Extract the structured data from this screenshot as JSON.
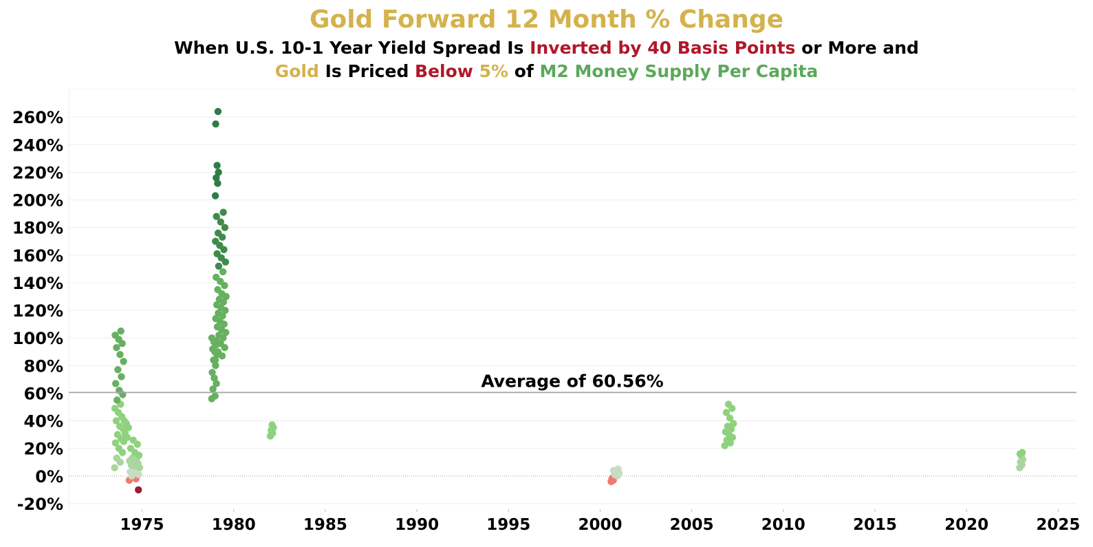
{
  "title": "Gold Forward 12 Month % Change",
  "subtitle_line1": [
    {
      "text": "When U.S. 10-1 Year Yield Spread Is ",
      "color": "black"
    },
    {
      "text": "Inverted by 40 Basis Points",
      "color": "red"
    },
    {
      "text": " or More and",
      "color": "black"
    }
  ],
  "subtitle_line2": [
    {
      "text": "Gold",
      "color": "gold"
    },
    {
      "text": " Is Priced ",
      "color": "black"
    },
    {
      "text": "Below",
      "color": "red"
    },
    {
      "text": " 5%",
      "color": "gold"
    },
    {
      "text": " of ",
      "color": "black"
    },
    {
      "text": "M2 Money Supply Per Capita",
      "color": "green"
    }
  ],
  "colors": {
    "title_gold": "#D4B24C",
    "red": "#B0172A",
    "green": "#5CA85A",
    "average_line": "#A6A6A6",
    "dark_green": "#2E7D46",
    "mid_green": "#66B060",
    "light_green": "#8ED27E",
    "pale": "#C9DCC2",
    "salmon": "#F07A6E",
    "dark_red": "#A31A35"
  },
  "chart_data": {
    "type": "scatter",
    "xlabel": "",
    "ylabel": "",
    "xlim": [
      1971,
      2026
    ],
    "ylim": [
      -24,
      280
    ],
    "x_ticks": [
      1975,
      1980,
      1985,
      1990,
      1995,
      2000,
      2005,
      2010,
      2015,
      2020,
      2025
    ],
    "x_tick_labels": [
      "1975",
      "1980",
      "1985",
      "1990",
      "1995",
      "2000",
      "2005",
      "2010",
      "2015",
      "2020",
      "2025"
    ],
    "y_ticks": [
      -20,
      0,
      20,
      40,
      60,
      80,
      100,
      120,
      140,
      160,
      180,
      200,
      220,
      240,
      260
    ],
    "y_tick_labels": [
      "-20%",
      "0%",
      "20%",
      "40%",
      "60%",
      "80%",
      "100%",
      "120%",
      "140%",
      "160%",
      "180%",
      "200%",
      "220%",
      "240%",
      "260%"
    ],
    "grid": "horizontal",
    "average": {
      "value": 60.56,
      "label": "Average of 60.56%"
    },
    "clusters": [
      {
        "x_start": 1973.5,
        "x_end": 1974.0,
        "y_values": [
          6,
          10,
          13,
          17,
          20,
          24,
          27,
          30,
          34,
          36,
          40,
          43,
          46,
          49,
          52,
          55,
          59,
          62,
          67,
          72,
          77,
          83,
          88,
          93,
          96,
          99,
          102,
          105
        ]
      },
      {
        "x_start": 1974.0,
        "x_end": 1974.3,
        "y_values": [
          25,
          28,
          31,
          35,
          38,
          40
        ]
      },
      {
        "x_start": 1974.3,
        "x_end": 1974.9,
        "y_values": [
          -3,
          -2,
          0,
          1,
          2,
          3,
          4,
          5,
          6,
          7,
          8,
          9,
          10,
          11,
          12,
          13,
          15,
          17,
          20,
          23,
          26
        ]
      },
      {
        "x_start": 1974.7,
        "x_end": 1974.9,
        "y_values": [
          -10
        ]
      },
      {
        "x_start": 1978.8,
        "x_end": 1979.1,
        "y_values": [
          56,
          58,
          63,
          67,
          71,
          75,
          80,
          84,
          88,
          90,
          92,
          95,
          97,
          100
        ]
      },
      {
        "x_start": 1979.0,
        "x_end": 1979.6,
        "y_values": [
          84,
          87,
          90,
          93,
          96,
          98,
          100,
          102,
          104,
          106,
          108,
          110,
          112,
          114,
          116,
          118,
          120,
          122,
          124,
          126,
          128,
          130,
          132,
          135,
          138,
          141,
          144,
          148,
          152,
          155,
          158,
          161,
          164,
          167,
          170,
          173,
          176,
          180,
          184,
          188,
          191
        ]
      },
      {
        "x_start": 1979.0,
        "x_end": 1979.2,
        "y_values": [
          203,
          212,
          216,
          220,
          225,
          255,
          264
        ]
      },
      {
        "x_start": 1982.0,
        "x_end": 1982.2,
        "y_values": [
          29,
          31,
          33,
          35,
          37
        ]
      },
      {
        "x_start": 2000.6,
        "x_end": 2000.8,
        "y_values": [
          -4,
          -3,
          -2
        ]
      },
      {
        "x_start": 2000.7,
        "x_end": 2001.1,
        "y_values": [
          -1,
          0,
          1,
          2,
          3,
          4,
          5
        ]
      },
      {
        "x_start": 2006.8,
        "x_end": 2007.3,
        "y_values": [
          22,
          24,
          26,
          28,
          30,
          32,
          34,
          36,
          38,
          42,
          46,
          49,
          52
        ]
      },
      {
        "x_start": 2022.9,
        "x_end": 2023.1,
        "y_values": [
          6,
          8,
          10,
          12,
          14,
          16,
          17
        ]
      }
    ]
  }
}
